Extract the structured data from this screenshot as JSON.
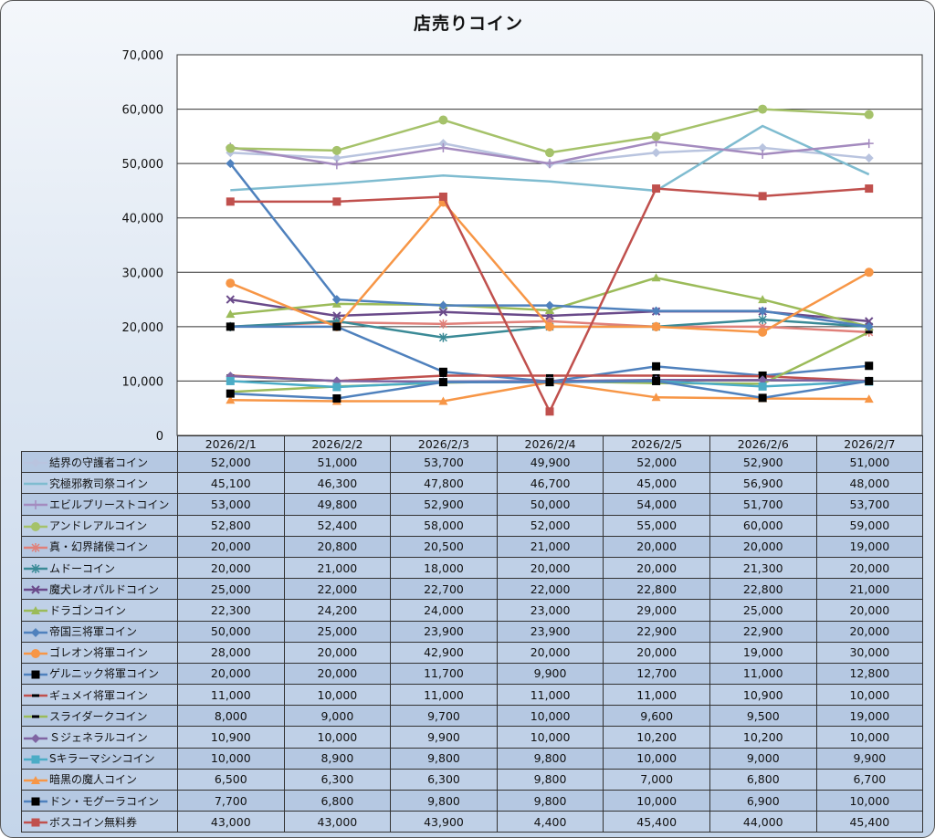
{
  "chart_data": {
    "type": "line",
    "title": "店売りコイン",
    "xlabel": "",
    "ylabel": "",
    "ylim": [
      0,
      70000
    ],
    "yticks": [
      "0",
      "10,000",
      "20,000",
      "30,000",
      "40,000",
      "50,000",
      "60,000",
      "70,000"
    ],
    "grid": true,
    "legend": "data-table-left",
    "categories": [
      "2026/2/1",
      "2026/2/2",
      "2026/2/3",
      "2026/2/4",
      "2026/2/5",
      "2026/2/6",
      "2026/2/7"
    ],
    "series": [
      {
        "name": "結界の守護者コイン",
        "color": "#b9c4df",
        "marker": "diamond",
        "values": [
          52000,
          51000,
          53700,
          49900,
          52000,
          52900,
          51000
        ]
      },
      {
        "name": "究極邪教司祭コイン",
        "color": "#7fbcd0",
        "marker": "none",
        "values": [
          45100,
          46300,
          47800,
          46700,
          45000,
          56900,
          48000
        ]
      },
      {
        "name": "エビルプリーストコイン",
        "color": "#a48bbf",
        "marker": "plus",
        "values": [
          53000,
          49800,
          52900,
          50000,
          54000,
          51700,
          53700
        ]
      },
      {
        "name": "アンドレアルコイン",
        "color": "#a5c26a",
        "marker": "circle",
        "values": [
          52800,
          52400,
          58000,
          52000,
          55000,
          60000,
          59000
        ]
      },
      {
        "name": "真・幻界諸侯コイン",
        "color": "#e0807a",
        "marker": "star",
        "values": [
          20000,
          20800,
          20500,
          21000,
          20000,
          20000,
          19000
        ]
      },
      {
        "name": "ムドーコイン",
        "color": "#3a8a96",
        "marker": "star",
        "values": [
          20000,
          21000,
          18000,
          20000,
          20000,
          21300,
          20000
        ]
      },
      {
        "name": "魔犬レオパルドコイン",
        "color": "#6a4a8a",
        "marker": "x",
        "values": [
          25000,
          22000,
          22700,
          22000,
          22800,
          22800,
          21000
        ]
      },
      {
        "name": "ドラゴンコイン",
        "color": "#9bbb59",
        "marker": "triangle",
        "values": [
          22300,
          24200,
          24000,
          23000,
          29000,
          25000,
          20000
        ]
      },
      {
        "name": "帝国三将軍コイン",
        "color": "#4f81bd",
        "marker": "diamond",
        "values": [
          50000,
          25000,
          23900,
          23900,
          22900,
          22900,
          20000
        ]
      },
      {
        "name": "ゴレオン将軍コイン",
        "color": "#f79646",
        "marker": "circle",
        "values": [
          28000,
          20000,
          42900,
          20000,
          20000,
          19000,
          30000
        ]
      },
      {
        "name": "ゲルニック将軍コイン",
        "color": "#4f81bd",
        "marker": "blacksquare",
        "values": [
          20000,
          20000,
          11700,
          9900,
          12700,
          11000,
          12800
        ]
      },
      {
        "name": "ギュメイ将軍コイン",
        "color": "#c0504d",
        "marker": "dash",
        "values": [
          11000,
          10000,
          11000,
          11000,
          11000,
          10900,
          10000
        ]
      },
      {
        "name": "スライダークコイン",
        "color": "#9bbb59",
        "marker": "dash",
        "values": [
          8000,
          9000,
          9700,
          10000,
          9600,
          9500,
          19000
        ]
      },
      {
        "name": "Ｓジェネラルコイン",
        "color": "#8064a2",
        "marker": "diamond",
        "values": [
          10900,
          10000,
          9900,
          10000,
          10200,
          10200,
          10000
        ]
      },
      {
        "name": "Sキラーマシンコイン",
        "color": "#4bacc6",
        "marker": "square",
        "values": [
          10000,
          8900,
          9800,
          9800,
          10000,
          9000,
          9900
        ]
      },
      {
        "name": "暗黒の魔人コイン",
        "color": "#f79646",
        "marker": "triangle",
        "values": [
          6500,
          6300,
          6300,
          9800,
          7000,
          6800,
          6700
        ]
      },
      {
        "name": "ドン・モグーラコイン",
        "color": "#4f81bd",
        "marker": "blacksquare",
        "values": [
          7700,
          6800,
          9800,
          9800,
          10000,
          6900,
          10000
        ]
      },
      {
        "name": "ボスコイン無料券",
        "color": "#c0504d",
        "marker": "square",
        "values": [
          43000,
          43000,
          43900,
          4400,
          45400,
          44000,
          45400
        ]
      }
    ]
  }
}
